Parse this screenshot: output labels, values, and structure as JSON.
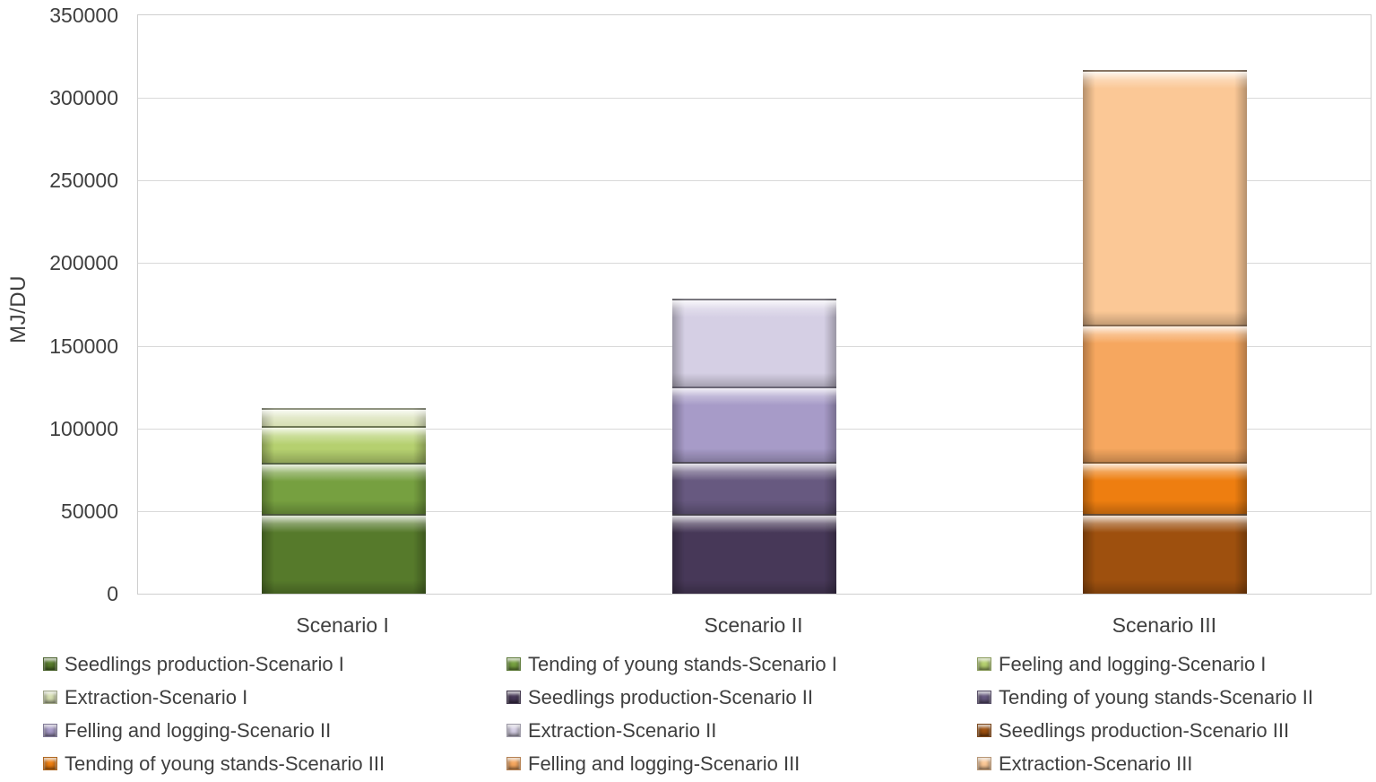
{
  "chart_data": {
    "type": "bar",
    "stacked": true,
    "title": "",
    "xlabel": "",
    "ylabel": "MJ/DU",
    "ylim": [
      0,
      350000
    ],
    "ytick_interval": 50000,
    "ytick_labels": [
      "0",
      "50000",
      "100000",
      "150000",
      "200000",
      "250000",
      "300000",
      "350000"
    ],
    "grid": "horizontal",
    "legend_position": "bottom",
    "legend_columns": 3,
    "gridline_color": "#d9d9d9",
    "text_color": "#3f3f3f",
    "categories": [
      "Scenario I",
      "Scenario II",
      "Scenario III"
    ],
    "series": [
      {
        "name": "Seedlings production-Scenario I",
        "category": "Scenario I",
        "value": 48500,
        "color": "#567A2B"
      },
      {
        "name": "Tending of young stands-Scenario I",
        "category": "Scenario I",
        "value": 31000,
        "color": "#76A040"
      },
      {
        "name": "Feeling and logging-Scenario I",
        "category": "Scenario I",
        "value": 22000,
        "color": "#B5D06F"
      },
      {
        "name": "Extraction-Scenario I",
        "category": "Scenario I",
        "value": 11000,
        "color": "#D6DFB2"
      },
      {
        "name": "Seedlings production-Scenario II",
        "category": "Scenario II",
        "value": 48500,
        "color": "#473858"
      },
      {
        "name": "Tending of young stands-Scenario II",
        "category": "Scenario II",
        "value": 31500,
        "color": "#675980"
      },
      {
        "name": "Felling and logging-Scenario II",
        "category": "Scenario II",
        "value": 45500,
        "color": "#A79BC8"
      },
      {
        "name": "Extraction-Scenario II",
        "category": "Scenario II",
        "value": 53000,
        "color": "#D5CFE4"
      },
      {
        "name": "Seedlings production-Scenario III",
        "category": "Scenario III",
        "value": 48500,
        "color": "#9E500E"
      },
      {
        "name": "Tending of young stands-Scenario III",
        "category": "Scenario III",
        "value": 31500,
        "color": "#EE7E10"
      },
      {
        "name": "Felling and logging-Scenario III",
        "category": "Scenario III",
        "value": 82800,
        "color": "#F6A75F"
      },
      {
        "name": "Extraction-Scenario III",
        "category": "Scenario III",
        "value": 154100,
        "color": "#FBC896"
      }
    ]
  }
}
